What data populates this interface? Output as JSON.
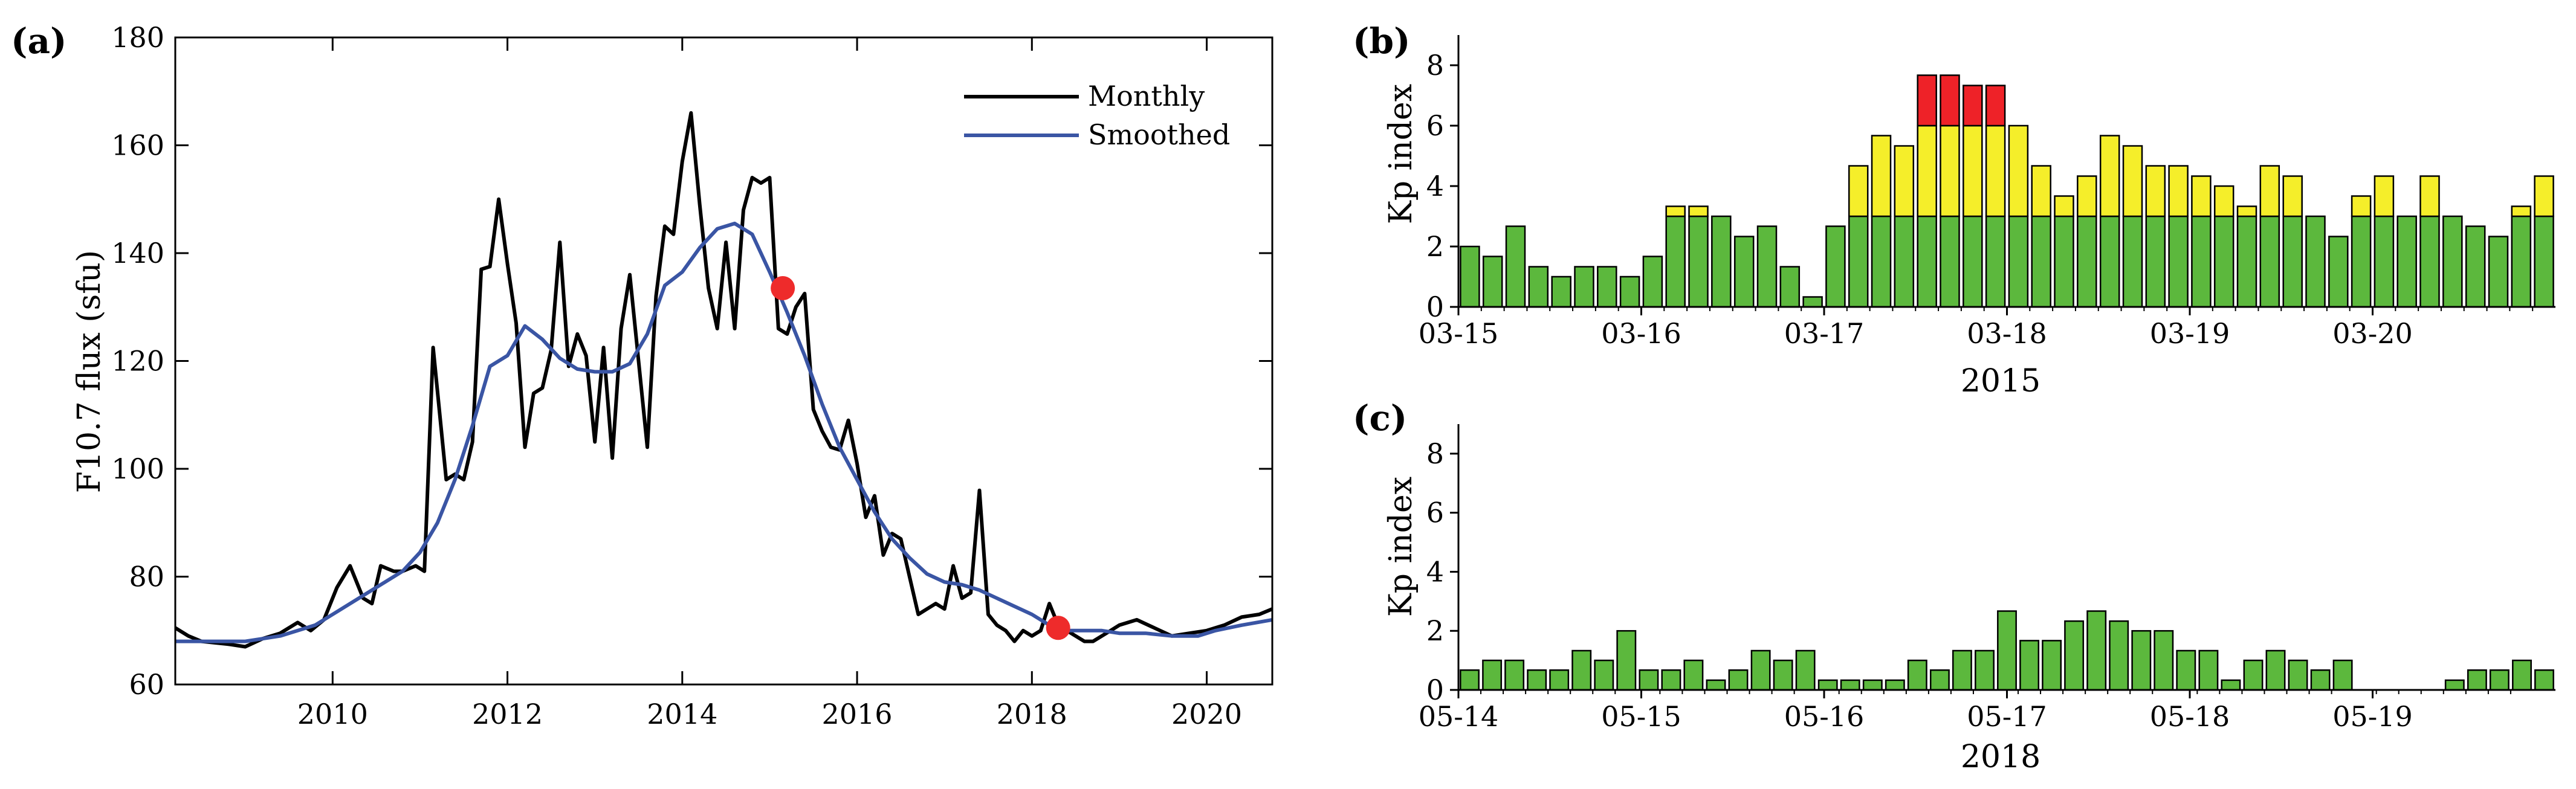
{
  "colors": {
    "monthly": "#000000",
    "smoothed": "#3a55a4",
    "marker": "#ee2b2b",
    "kp_green": "#5cb83d",
    "kp_yellow": "#f5ee2a",
    "kp_red": "#ee2228",
    "bar_edge": "#000000"
  },
  "chart_data": [
    {
      "id": "a",
      "type": "line",
      "panel_label": "(a)",
      "ylabel": "F10.7 flux (sfu)",
      "xlabel": "",
      "xlim": [
        2008.2,
        2020.75
      ],
      "ylim": [
        60,
        180
      ],
      "xticks": [
        2010,
        2012,
        2014,
        2016,
        2018,
        2020
      ],
      "xtick_labels": [
        "2010",
        "2012",
        "2014",
        "2016",
        "2018",
        "2020"
      ],
      "yticks": [
        60,
        80,
        100,
        120,
        140,
        160,
        180
      ],
      "ytick_labels": [
        "60",
        "80",
        "100",
        "120",
        "140",
        "160",
        "180"
      ],
      "legend": {
        "position": "top-right",
        "entries": [
          "Monthly",
          "Smoothed"
        ]
      },
      "series": [
        {
          "name": "Monthly",
          "x": [
            2008.2,
            2008.35,
            2008.5,
            2008.8,
            2009.0,
            2009.2,
            2009.4,
            2009.6,
            2009.75,
            2009.9,
            2010.05,
            2010.2,
            2010.35,
            2010.45,
            2010.55,
            2010.7,
            2010.8,
            2010.95,
            2011.05,
            2011.15,
            2011.3,
            2011.4,
            2011.5,
            2011.6,
            2011.7,
            2011.8,
            2011.9,
            2012.0,
            2012.1,
            2012.2,
            2012.3,
            2012.4,
            2012.5,
            2012.6,
            2012.7,
            2012.8,
            2012.9,
            2013.0,
            2013.1,
            2013.2,
            2013.3,
            2013.4,
            2013.5,
            2013.6,
            2013.7,
            2013.8,
            2013.9,
            2014.0,
            2014.1,
            2014.2,
            2014.3,
            2014.4,
            2014.5,
            2014.6,
            2014.7,
            2014.8,
            2014.9,
            2015.0,
            2015.1,
            2015.2,
            2015.3,
            2015.4,
            2015.5,
            2015.6,
            2015.7,
            2015.8,
            2015.9,
            2016.0,
            2016.1,
            2016.2,
            2016.3,
            2016.4,
            2016.5,
            2016.6,
            2016.7,
            2016.8,
            2016.9,
            2017.0,
            2017.1,
            2017.2,
            2017.3,
            2017.4,
            2017.5,
            2017.6,
            2017.7,
            2017.8,
            2017.9,
            2018.0,
            2018.1,
            2018.2,
            2018.3,
            2018.4,
            2018.5,
            2018.6,
            2018.7,
            2018.8,
            2018.9,
            2019.0,
            2019.2,
            2019.4,
            2019.6,
            2019.8,
            2020.0,
            2020.2,
            2020.4,
            2020.6,
            2020.75
          ],
          "values": [
            70.5,
            69.0,
            68.0,
            67.5,
            67.0,
            68.5,
            69.5,
            71.5,
            70.0,
            72.0,
            78.0,
            82.0,
            76.0,
            75.0,
            82.0,
            81.0,
            81.0,
            82.0,
            81.0,
            122.5,
            98.0,
            99.0,
            98.0,
            105.0,
            137.0,
            137.5,
            150.0,
            138.0,
            127.0,
            104.0,
            114.0,
            115.0,
            122.0,
            142.0,
            119.0,
            125.0,
            121.0,
            105.0,
            122.5,
            102.0,
            126.0,
            136.0,
            120.0,
            104.0,
            132.0,
            145.0,
            143.5,
            157.0,
            166.0,
            149.0,
            133.5,
            126.0,
            142.0,
            126.0,
            148.0,
            154.0,
            153.0,
            154.0,
            126.0,
            125.0,
            130.0,
            132.5,
            111.0,
            107.0,
            104.0,
            103.5,
            109.0,
            101.0,
            91.0,
            95.0,
            84.0,
            88.0,
            87.0,
            80.0,
            73.0,
            74.0,
            75.0,
            74.0,
            82.0,
            76.0,
            77.0,
            96.0,
            73.0,
            71.0,
            70.0,
            68.0,
            70.0,
            69.0,
            70.0,
            75.0,
            71.0,
            70.0,
            69.0,
            68.0,
            68.0,
            69.0,
            70.0,
            71.0,
            72.0,
            70.5,
            69.0,
            69.5,
            70.0,
            71.0,
            72.5,
            73.0,
            74.0
          ]
        },
        {
          "name": "Smoothed",
          "x": [
            2008.2,
            2008.6,
            2009.0,
            2009.4,
            2009.8,
            2010.0,
            2010.3,
            2010.6,
            2010.8,
            2011.0,
            2011.2,
            2011.4,
            2011.6,
            2011.8,
            2012.0,
            2012.2,
            2012.4,
            2012.6,
            2012.8,
            2013.0,
            2013.2,
            2013.4,
            2013.6,
            2013.8,
            2014.0,
            2014.2,
            2014.4,
            2014.6,
            2014.8,
            2015.0,
            2015.2,
            2015.4,
            2015.6,
            2015.8,
            2016.0,
            2016.2,
            2016.4,
            2016.6,
            2016.8,
            2017.0,
            2017.2,
            2017.4,
            2017.6,
            2017.8,
            2018.0,
            2018.2,
            2018.4,
            2018.6,
            2018.8,
            2019.0,
            2019.3,
            2019.6,
            2019.9,
            2020.1,
            2020.4,
            2020.75
          ],
          "values": [
            68.0,
            68.0,
            68.0,
            69.0,
            71.0,
            73.0,
            76.0,
            79.0,
            81.0,
            84.5,
            90.0,
            98.0,
            108.0,
            119.0,
            121.0,
            126.5,
            124.0,
            120.5,
            118.5,
            118.0,
            118.0,
            119.5,
            125.0,
            134.0,
            136.5,
            141.0,
            144.5,
            145.5,
            143.5,
            136.5,
            129.0,
            121.0,
            112.0,
            104.0,
            98.0,
            92.0,
            87.0,
            83.5,
            80.5,
            79.0,
            78.5,
            77.5,
            76.0,
            74.5,
            73.0,
            71.0,
            70.0,
            70.0,
            70.0,
            69.5,
            69.5,
            69.0,
            69.0,
            70.0,
            71.0,
            72.0
          ]
        }
      ],
      "markers": [
        {
          "x": 2015.15,
          "y": 133.5
        },
        {
          "x": 2018.3,
          "y": 70.5
        }
      ]
    },
    {
      "id": "b",
      "type": "bar",
      "panel_label": "(b)",
      "ylabel": "Kp index",
      "xlabel": "2015",
      "xlim": [
        0,
        6
      ],
      "ylim": [
        0,
        9
      ],
      "yticks": [
        0,
        2,
        4,
        6,
        8
      ],
      "ytick_labels": [
        "0",
        "2",
        "4",
        "6",
        "8"
      ],
      "xticks": [
        0,
        1,
        2,
        3,
        4,
        5
      ],
      "xtick_labels": [
        "03-15",
        "03-16",
        "03-17",
        "03-18",
        "03-19",
        "03-20"
      ],
      "threshold_low": 3,
      "threshold_high": 6,
      "values": [
        2.0,
        1.67,
        2.67,
        1.33,
        1.0,
        1.33,
        1.33,
        1.0,
        1.67,
        3.33,
        3.33,
        3.0,
        2.33,
        2.67,
        1.33,
        0.33,
        2.67,
        4.67,
        5.67,
        5.33,
        7.67,
        7.67,
        7.33,
        7.33,
        6.0,
        4.67,
        3.67,
        4.33,
        5.67,
        5.33,
        4.67,
        4.67,
        4.33,
        4.0,
        3.33,
        4.67,
        4.33,
        3.0,
        2.33,
        3.67,
        4.33,
        3.0,
        4.33,
        3.0,
        2.67,
        2.33,
        3.33,
        4.33
      ]
    },
    {
      "id": "c",
      "type": "bar",
      "panel_label": "(c)",
      "ylabel": "Kp index",
      "xlabel": "2018",
      "xlim": [
        0,
        6
      ],
      "ylim": [
        0,
        9
      ],
      "yticks": [
        0,
        2,
        4,
        6,
        8
      ],
      "ytick_labels": [
        "0",
        "2",
        "4",
        "6",
        "8"
      ],
      "xticks": [
        0,
        1,
        2,
        3,
        4,
        5
      ],
      "xtick_labels": [
        "05-14",
        "05-15",
        "05-16",
        "05-17",
        "05-18",
        "05-19"
      ],
      "threshold_low": 3,
      "threshold_high": 6,
      "values": [
        0.67,
        1.0,
        1.0,
        0.67,
        0.67,
        1.33,
        1.0,
        2.0,
        0.67,
        0.67,
        1.0,
        0.33,
        0.67,
        1.33,
        1.0,
        1.33,
        0.33,
        0.33,
        0.33,
        0.33,
        1.0,
        0.67,
        1.33,
        1.33,
        2.67,
        1.67,
        1.67,
        2.33,
        2.67,
        2.33,
        2.0,
        2.0,
        1.33,
        1.33,
        0.33,
        1.0,
        1.33,
        1.0,
        0.67,
        1.0,
        0,
        0,
        0,
        0,
        0.33,
        0.67,
        0.67,
        1.0,
        0.67
      ]
    }
  ]
}
